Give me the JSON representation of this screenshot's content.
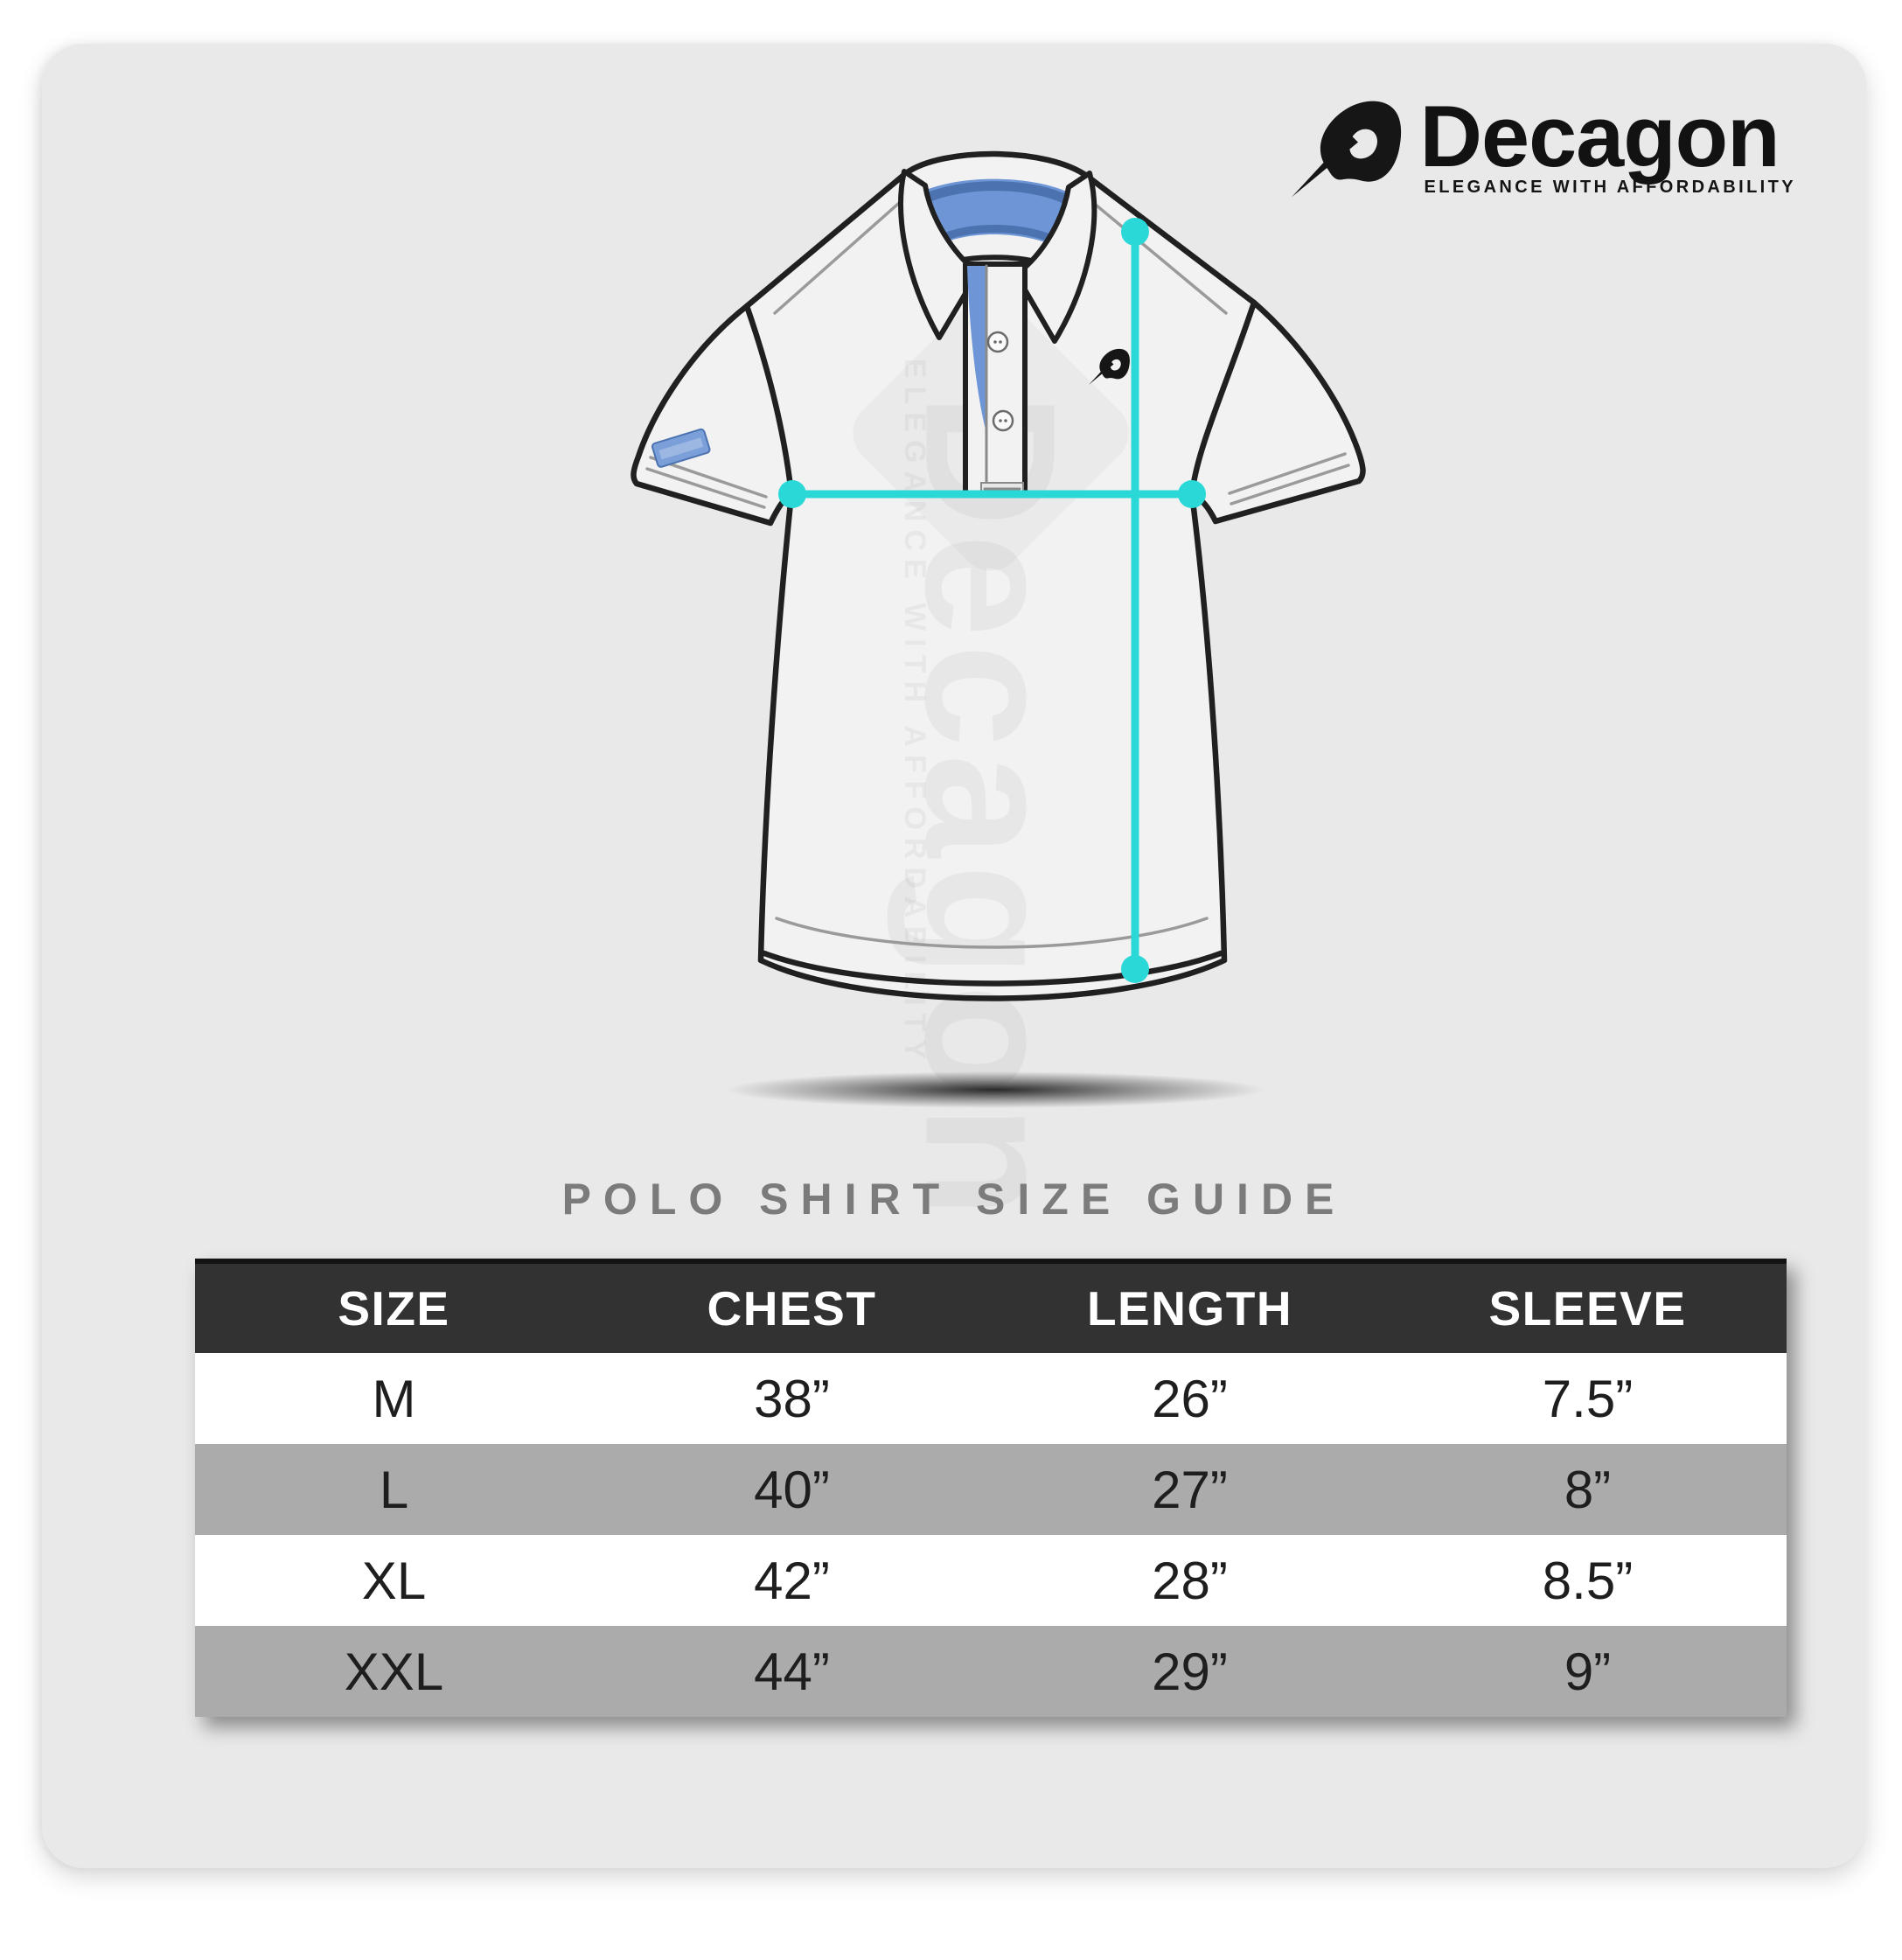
{
  "brand": {
    "name": "Decagon",
    "tagline": "ELEGANCE WITH AFFORDABILITY"
  },
  "watermark": {
    "name": "Decagon",
    "tagline": "ELEGANCE WITH AFFORDABILITY"
  },
  "heading": "POLO SHIRT SIZE GUIDE",
  "size_table": {
    "columns": [
      "SIZE",
      "CHEST",
      "LENGTH",
      "SLEEVE"
    ],
    "rows": [
      [
        "M",
        "38”",
        "26”",
        "7.5”"
      ],
      [
        "L",
        "40”",
        "27”",
        "8”"
      ],
      [
        "XL",
        "42”",
        "28”",
        "8.5”"
      ],
      [
        "XXL",
        "44”",
        "29”",
        "9”"
      ]
    ]
  },
  "diagram": {
    "garment": "polo-shirt",
    "measure_lines": [
      "chest-width",
      "body-length"
    ]
  },
  "colors": {
    "accent_cyan": "#2bd8d8",
    "placket_blue": "#6e96d6",
    "placket_blue_dark": "#4c73b0",
    "table_header_bg": "#323232",
    "table_row_alt_gray": "#ababab",
    "card_background": "#e9e9ea",
    "heading_gray": "#7b7b7b",
    "brand_black": "#121212"
  }
}
